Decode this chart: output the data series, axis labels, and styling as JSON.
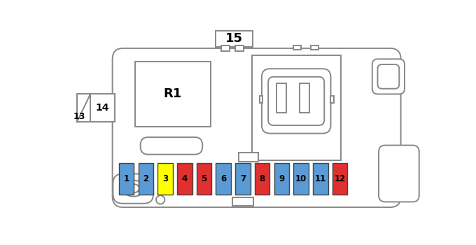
{
  "outline_color": "#888888",
  "fuse_colors": [
    "#5B9BD5",
    "#5B9BD5",
    "#FFFF00",
    "#E03030",
    "#E03030",
    "#5B9BD5",
    "#5B9BD5",
    "#E03030",
    "#5B9BD5",
    "#5B9BD5",
    "#5B9BD5",
    "#E03030"
  ],
  "fuse_labels": [
    "1",
    "2",
    "3",
    "4",
    "5",
    "6",
    "7",
    "8",
    "9",
    "10",
    "11",
    "12"
  ],
  "label_15": "15",
  "label_R1": "R1",
  "label_13": "13",
  "label_14": "14"
}
